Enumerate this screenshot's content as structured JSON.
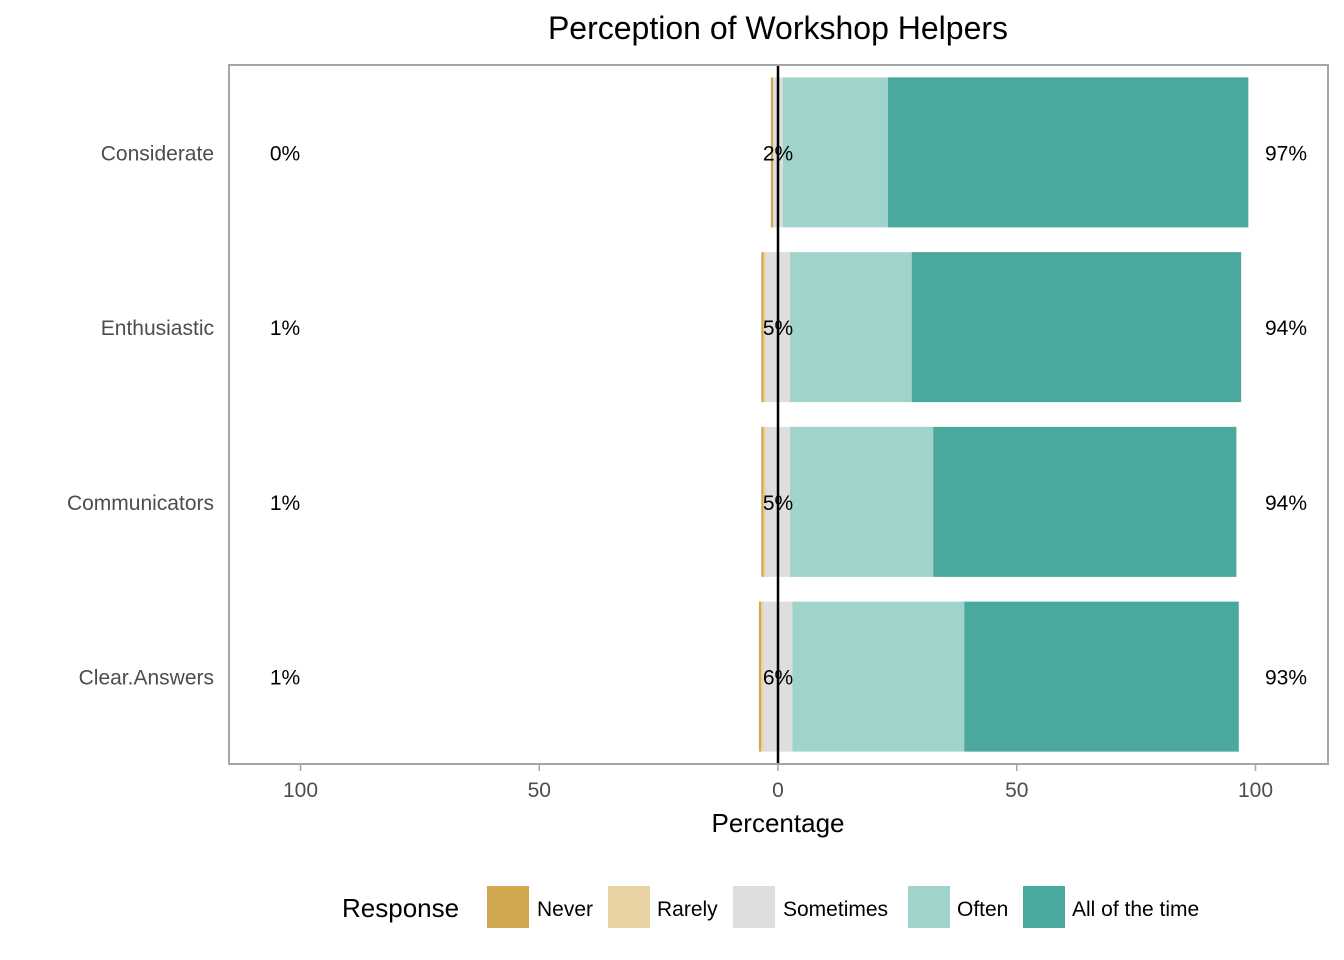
{
  "chart_data": {
    "type": "bar",
    "orientation": "horizontal-diverging",
    "title": "Perception of Workshop Helpers",
    "xlabel": "Percentage",
    "ylabel": "",
    "xlim": [
      -115,
      115
    ],
    "x_ticks": [
      -100,
      -50,
      0,
      50,
      100
    ],
    "x_tick_labels": [
      "100",
      "50",
      "0",
      "50",
      "100"
    ],
    "grid": false,
    "legend": {
      "title": "Response",
      "position": "bottom",
      "items": [
        {
          "name": "Never",
          "color": "#D1A750"
        },
        {
          "name": "Rarely",
          "color": "#E8D3A2"
        },
        {
          "name": "Sometimes",
          "color": "#DEDEDE"
        },
        {
          "name": "Often",
          "color": "#A0D3CC"
        },
        {
          "name": "All of the time",
          "color": "#4BA89C"
        }
      ]
    },
    "categories": [
      "Considerate",
      "Enthusiastic",
      "Communicators",
      "Clear.Answers"
    ],
    "series": [
      {
        "name": "Never",
        "values": [
          0.5,
          0.5,
          0.5,
          0.5
        ]
      },
      {
        "name": "Rarely",
        "values": [
          0,
          0.5,
          0.5,
          0.5
        ]
      },
      {
        "name": "Sometimes",
        "values": [
          2,
          5,
          5,
          6
        ]
      },
      {
        "name": "Often",
        "values": [
          22,
          25.5,
          30,
          36
        ]
      },
      {
        "name": "All of the time",
        "values": [
          75.5,
          69,
          63.5,
          57.5
        ]
      }
    ],
    "percent_labels": {
      "low": [
        "0%",
        "1%",
        "1%",
        "1%"
      ],
      "neutral": [
        "2%",
        "5%",
        "5%",
        "6%"
      ],
      "high": [
        "97%",
        "94%",
        "94%",
        "93%"
      ]
    }
  }
}
